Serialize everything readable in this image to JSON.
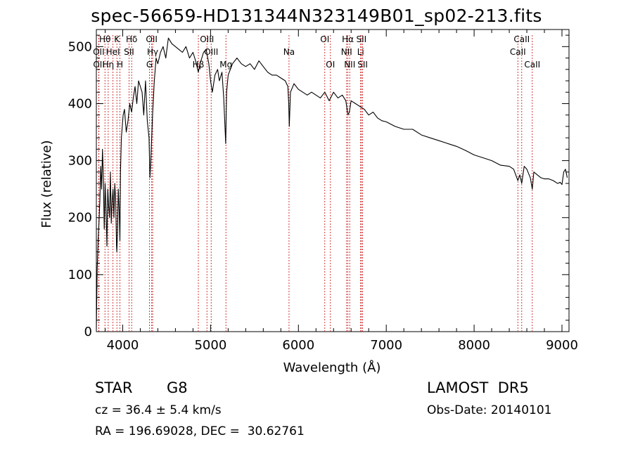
{
  "chart_data": {
    "type": "line",
    "title": "spec-56659-HD131344N323149B01_sp02-213.fits",
    "xlabel": "Wavelength (Å)",
    "ylabel": "Flux (relative)",
    "xlim": [
      3700,
      9080
    ],
    "ylim": [
      0,
      530
    ],
    "xticks": [
      4000,
      5000,
      6000,
      7000,
      8000,
      9000
    ],
    "yticks": [
      0,
      100,
      200,
      300,
      400,
      500
    ],
    "grid": false,
    "series": [
      {
        "x": [
          3700,
          3705,
          3710,
          3720,
          3730,
          3740,
          3750,
          3760,
          3770,
          3780,
          3790,
          3800,
          3810,
          3820,
          3830,
          3840,
          3850,
          3860,
          3870,
          3880,
          3890,
          3900,
          3910,
          3920,
          3930,
          3933,
          3940,
          3950,
          3960,
          3968,
          3975,
          3985,
          3995,
          4005,
          4020,
          4040,
          4060,
          4080,
          4101,
          4120,
          4140,
          4160,
          4180,
          4200,
          4220,
          4240,
          4260,
          4280,
          4300,
          4310,
          4320,
          4340,
          4360,
          4380,
          4400,
          4430,
          4460,
          4490,
          4520,
          4560,
          4600,
          4640,
          4680,
          4720,
          4760,
          4800,
          4830,
          4861,
          4880,
          4900,
          4920,
          4950,
          4980,
          5000,
          5020,
          5050,
          5080,
          5100,
          5130,
          5150,
          5167,
          5172,
          5183,
          5200,
          5250,
          5300,
          5350,
          5400,
          5450,
          5500,
          5550,
          5600,
          5650,
          5700,
          5750,
          5800,
          5850,
          5880,
          5890,
          5896,
          5910,
          5950,
          6000,
          6050,
          6100,
          6150,
          6200,
          6250,
          6300,
          6350,
          6400,
          6450,
          6500,
          6540,
          6563,
          6580,
          6600,
          6650,
          6700,
          6750,
          6800,
          6850,
          6900,
          6950,
          7000,
          7100,
          7200,
          7300,
          7400,
          7500,
          7600,
          7700,
          7800,
          7900,
          8000,
          8100,
          8200,
          8300,
          8400,
          8450,
          8498,
          8520,
          8542,
          8570,
          8600,
          8640,
          8662,
          8680,
          8720,
          8760,
          8800,
          8850,
          8900,
          8950,
          8980,
          9000,
          9020,
          9040,
          9060
        ],
        "y": [
          5,
          60,
          110,
          160,
          190,
          230,
          290,
          250,
          320,
          270,
          180,
          260,
          215,
          150,
          250,
          220,
          200,
          280,
          190,
          230,
          250,
          200,
          260,
          230,
          150,
          140,
          170,
          250,
          210,
          160,
          280,
          340,
          360,
          380,
          390,
          350,
          370,
          400,
          385,
          410,
          430,
          400,
          440,
          430,
          420,
          380,
          440,
          370,
          340,
          270,
          300,
          380,
          440,
          480,
          470,
          490,
          500,
          480,
          515,
          505,
          500,
          495,
          490,
          500,
          480,
          490,
          475,
          455,
          470,
          480,
          490,
          495,
          470,
          440,
          420,
          450,
          460,
          440,
          455,
          410,
          350,
          330,
          420,
          450,
          470,
          480,
          470,
          465,
          470,
          460,
          475,
          465,
          455,
          450,
          450,
          445,
          440,
          430,
          400,
          360,
          420,
          435,
          425,
          420,
          415,
          420,
          415,
          410,
          420,
          405,
          420,
          410,
          415,
          405,
          380,
          385,
          405,
          400,
          395,
          390,
          380,
          385,
          375,
          370,
          368,
          360,
          355,
          355,
          345,
          340,
          335,
          330,
          325,
          318,
          310,
          305,
          300,
          292,
          290,
          285,
          265,
          275,
          260,
          290,
          285,
          270,
          250,
          280,
          275,
          270,
          268,
          268,
          265,
          260,
          262,
          258,
          280,
          285,
          270
        ]
      }
    ],
    "line_labels": [
      {
        "name": "Hθ",
        "wl": 3798,
        "row": 0
      },
      {
        "name": "K",
        "wl": 3934,
        "row": 0
      },
      {
        "name": "Hδ",
        "wl": 4102,
        "row": 0
      },
      {
        "name": "OII",
        "wl": 4330,
        "row": 0
      },
      {
        "name": "OIII",
        "wl": 4959,
        "row": 0
      },
      {
        "name": "OI",
        "wl": 6300,
        "row": 0
      },
      {
        "name": "Hα",
        "wl": 6563,
        "row": 0
      },
      {
        "name": "SII",
        "wl": 6717,
        "row": 0
      },
      {
        "name": "CaII",
        "wl": 8542,
        "row": 0
      },
      {
        "name": "OII",
        "wl": 3727,
        "row": 1
      },
      {
        "name": "HeI",
        "wl": 3889,
        "row": 1
      },
      {
        "name": "SII",
        "wl": 4072,
        "row": 1
      },
      {
        "name": "Hγ",
        "wl": 4341,
        "row": 1
      },
      {
        "name": "OIII",
        "wl": 5007,
        "row": 1
      },
      {
        "name": "Na",
        "wl": 5893,
        "row": 1
      },
      {
        "name": "NII",
        "wl": 6548,
        "row": 1
      },
      {
        "name": "Li",
        "wl": 6708,
        "row": 1
      },
      {
        "name": "CaII",
        "wl": 8498,
        "row": 1
      },
      {
        "name": "OII",
        "wl": 3729,
        "row": 2
      },
      {
        "name": "Hη",
        "wl": 3835,
        "row": 2
      },
      {
        "name": "H",
        "wl": 3968,
        "row": 2
      },
      {
        "name": "G",
        "wl": 4305,
        "row": 2
      },
      {
        "name": "Hβ",
        "wl": 4861,
        "row": 2
      },
      {
        "name": "Mg",
        "wl": 5175,
        "row": 2
      },
      {
        "name": "OI",
        "wl": 6364,
        "row": 2
      },
      {
        "name": "NII",
        "wl": 6584,
        "row": 2
      },
      {
        "name": "SII",
        "wl": 6731,
        "row": 2
      },
      {
        "name": "CaII",
        "wl": 8662,
        "row": 2
      }
    ]
  },
  "info": {
    "object_class": "STAR",
    "subclass": "G8",
    "survey": "LAMOST  DR5",
    "redshift": "cz = 36.4 ± 5.4 km/s",
    "obs_date": "Obs-Date: 20140101",
    "coords": "RA = 196.69028, DEC =  30.62761"
  }
}
